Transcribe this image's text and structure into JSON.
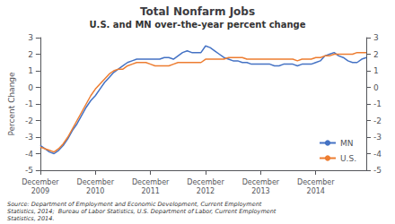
{
  "chart_data": {
    "type": "line",
    "title": "Total Nonfarm Jobs",
    "subtitle": "U.S. and MN over-the-year percent change",
    "ylabel": "Percent Change",
    "annotation": "Source: Department of Employment and Economic Development, Current Employment\nStatistics, 2014;  Bureau of Labor Statistics, U.S. Department of Labor, Current Employment\nStatistics, 2014.",
    "categories": [
      "December\n2009",
      null,
      null,
      null,
      null,
      null,
      null,
      null,
      null,
      null,
      null,
      null,
      "December\n2010",
      null,
      null,
      null,
      null,
      null,
      null,
      null,
      null,
      null,
      null,
      null,
      "December\n2011",
      null,
      null,
      null,
      null,
      null,
      null,
      null,
      null,
      null,
      null,
      null,
      "December\n2012",
      null,
      null,
      null,
      null,
      null,
      null,
      null,
      null,
      null,
      null,
      null,
      "December\n2013",
      null,
      null,
      null,
      null,
      null,
      null,
      null,
      null,
      null,
      null,
      null,
      "December\n2014",
      null,
      null,
      null,
      null,
      null,
      null,
      null,
      null,
      null,
      null,
      null
    ],
    "series": [
      {
        "name": "MN",
        "color": "#4472C4",
        "values": [
          -3.5,
          -3.7,
          -3.9,
          -4.0,
          -3.8,
          -3.5,
          -3.1,
          -2.6,
          -2.2,
          -1.7,
          -1.2,
          -0.8,
          -0.5,
          -0.1,
          0.3,
          0.6,
          0.9,
          1.1,
          1.3,
          1.5,
          1.6,
          1.7,
          1.7,
          1.7,
          1.7,
          1.7,
          1.7,
          1.8,
          1.8,
          1.7,
          1.9,
          2.1,
          2.2,
          2.1,
          2.1,
          2.1,
          2.5,
          2.4,
          2.2,
          2.0,
          1.8,
          1.7,
          1.6,
          1.6,
          1.5,
          1.5,
          1.4,
          1.4,
          1.4,
          1.4,
          1.4,
          1.3,
          1.3,
          1.4,
          1.4,
          1.4,
          1.3,
          1.4,
          1.4,
          1.4,
          1.5,
          1.6,
          1.9,
          2.0,
          2.1,
          1.9,
          1.8,
          1.6,
          1.5,
          1.5,
          1.7,
          1.8
        ]
      },
      {
        "name": "U.S.",
        "color": "#ED7D31",
        "values": [
          -3.6,
          -3.7,
          -3.8,
          -3.9,
          -3.7,
          -3.4,
          -3.0,
          -2.5,
          -2.0,
          -1.5,
          -1.0,
          -0.5,
          -0.1,
          0.2,
          0.5,
          0.8,
          1.0,
          1.1,
          1.1,
          1.3,
          1.4,
          1.5,
          1.5,
          1.5,
          1.4,
          1.3,
          1.3,
          1.3,
          1.3,
          1.4,
          1.5,
          1.5,
          1.5,
          1.5,
          1.5,
          1.5,
          1.7,
          1.7,
          1.7,
          1.7,
          1.7,
          1.8,
          1.8,
          1.8,
          1.8,
          1.7,
          1.7,
          1.7,
          1.7,
          1.7,
          1.7,
          1.7,
          1.7,
          1.7,
          1.7,
          1.7,
          1.6,
          1.7,
          1.7,
          1.7,
          1.8,
          1.8,
          1.9,
          1.9,
          2.0,
          2.0,
          2.0,
          2.0,
          2.0,
          2.1,
          2.1,
          2.1
        ]
      }
    ],
    "ylim": [
      -5,
      3
    ],
    "yticks": [
      -5,
      -4,
      -3,
      -2,
      -1,
      0,
      1,
      2,
      3
    ],
    "y2lim": [
      -5,
      3
    ],
    "y2ticks": [
      -5,
      -4,
      -3,
      -2,
      -1,
      0,
      1,
      2,
      3
    ],
    "legend": "lower right",
    "grid": false
  }
}
